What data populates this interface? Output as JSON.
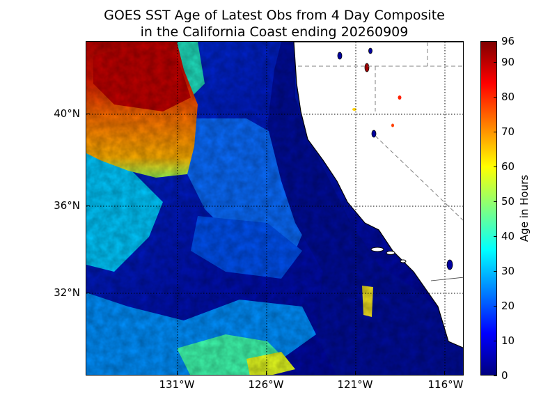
{
  "title": {
    "line1": "GOES SST Age of Latest Obs from 4 Day Composite",
    "line2": "in the California Coast ending 20260909"
  },
  "map": {
    "longitude_labels": [
      "131°W",
      "126°W",
      "121°W",
      "116°W"
    ],
    "latitude_labels": [
      "40°N",
      "36°N",
      "32°N"
    ],
    "land_color": "#ffffff",
    "coastline_color": "#000000",
    "gridline_style": "dotted"
  },
  "colorbar": {
    "label": "Age in Hours",
    "tick_labels": [
      "0",
      "10",
      "20",
      "30",
      "40",
      "50",
      "60",
      "70",
      "80",
      "90",
      "96"
    ],
    "range": [
      0,
      96
    ],
    "colormap": "jet",
    "colors": [
      "#000080",
      "#0000ff",
      "#0080ff",
      "#00ffff",
      "#80ff80",
      "#ffff00",
      "#ff8000",
      "#ff0000",
      "#800000"
    ]
  }
}
